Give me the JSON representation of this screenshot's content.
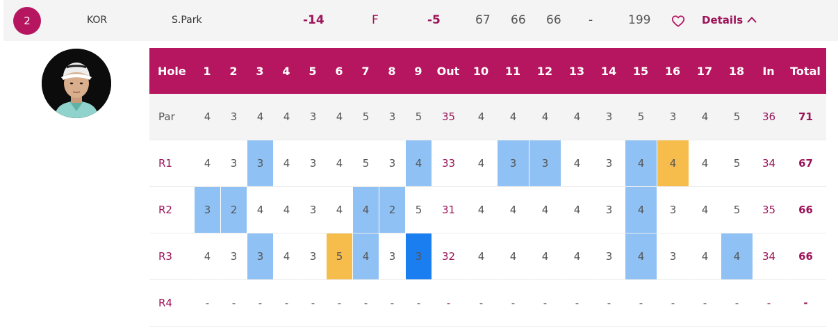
{
  "summary": {
    "position": "2",
    "country": "KOR",
    "player": "S.Park",
    "to_par": "-14",
    "thru": "F",
    "today": "-5",
    "r1": "67",
    "r2": "66",
    "r3": "66",
    "r4": "-",
    "total": "199",
    "favorite_icon": "heart-outline-icon",
    "details_label": "Details",
    "details_icon": "chevron-up-icon"
  },
  "colors": {
    "brand": "#b5165f",
    "birdie": "#8fc1f5",
    "eagle": "#1a7ef0",
    "bogey": "#f6bd4c"
  },
  "scorecard": {
    "headers": [
      "Hole",
      "1",
      "2",
      "3",
      "4",
      "5",
      "6",
      "7",
      "8",
      "9",
      "Out",
      "10",
      "11",
      "12",
      "13",
      "14",
      "15",
      "16",
      "17",
      "18",
      "In",
      "Total"
    ],
    "rows": [
      {
        "label": "Par",
        "cells": [
          "4",
          "3",
          "4",
          "4",
          "3",
          "4",
          "5",
          "3",
          "5",
          "35",
          "4",
          "4",
          "4",
          "4",
          "3",
          "5",
          "3",
          "4",
          "5",
          "36",
          "71"
        ],
        "marks": [
          "",
          "",
          "",
          "",
          "",
          "",
          "",
          "",
          "",
          "",
          "",
          "",
          "",
          "",
          "",
          "",
          "",
          "",
          "",
          "",
          ""
        ]
      },
      {
        "label": "R1",
        "cells": [
          "4",
          "3",
          "3",
          "4",
          "3",
          "4",
          "5",
          "3",
          "4",
          "33",
          "4",
          "3",
          "3",
          "4",
          "3",
          "4",
          "4",
          "4",
          "5",
          "34",
          "67"
        ],
        "marks": [
          "",
          "",
          "birdie",
          "",
          "",
          "",
          "",
          "",
          "birdie",
          "",
          "",
          "birdie",
          "birdie",
          "",
          "",
          "birdie",
          "bogey",
          "",
          "",
          "",
          ""
        ]
      },
      {
        "label": "R2",
        "cells": [
          "3",
          "2",
          "4",
          "4",
          "3",
          "4",
          "4",
          "2",
          "5",
          "31",
          "4",
          "4",
          "4",
          "4",
          "3",
          "4",
          "3",
          "4",
          "5",
          "35",
          "66"
        ],
        "marks": [
          "birdie",
          "birdie",
          "",
          "",
          "",
          "",
          "birdie",
          "birdie",
          "",
          "",
          "",
          "",
          "",
          "",
          "",
          "birdie",
          "",
          "",
          "",
          "",
          ""
        ]
      },
      {
        "label": "R3",
        "cells": [
          "4",
          "3",
          "3",
          "4",
          "3",
          "5",
          "4",
          "3",
          "3",
          "32",
          "4",
          "4",
          "4",
          "4",
          "3",
          "4",
          "3",
          "4",
          "4",
          "34",
          "66"
        ],
        "marks": [
          "",
          "",
          "birdie",
          "",
          "",
          "bogey",
          "birdie",
          "",
          "eagle",
          "",
          "",
          "",
          "",
          "",
          "",
          "birdie",
          "",
          "",
          "birdie",
          "",
          ""
        ]
      },
      {
        "label": "R4",
        "cells": [
          "-",
          "-",
          "-",
          "-",
          "-",
          "-",
          "-",
          "-",
          "-",
          "-",
          "-",
          "-",
          "-",
          "-",
          "-",
          "-",
          "-",
          "-",
          "-",
          "-",
          "-"
        ],
        "marks": [
          "",
          "",
          "",
          "",
          "",
          "",
          "",
          "",
          "",
          "",
          "",
          "",
          "",
          "",
          "",
          "",
          "",
          "",
          "",
          "",
          ""
        ]
      }
    ]
  }
}
